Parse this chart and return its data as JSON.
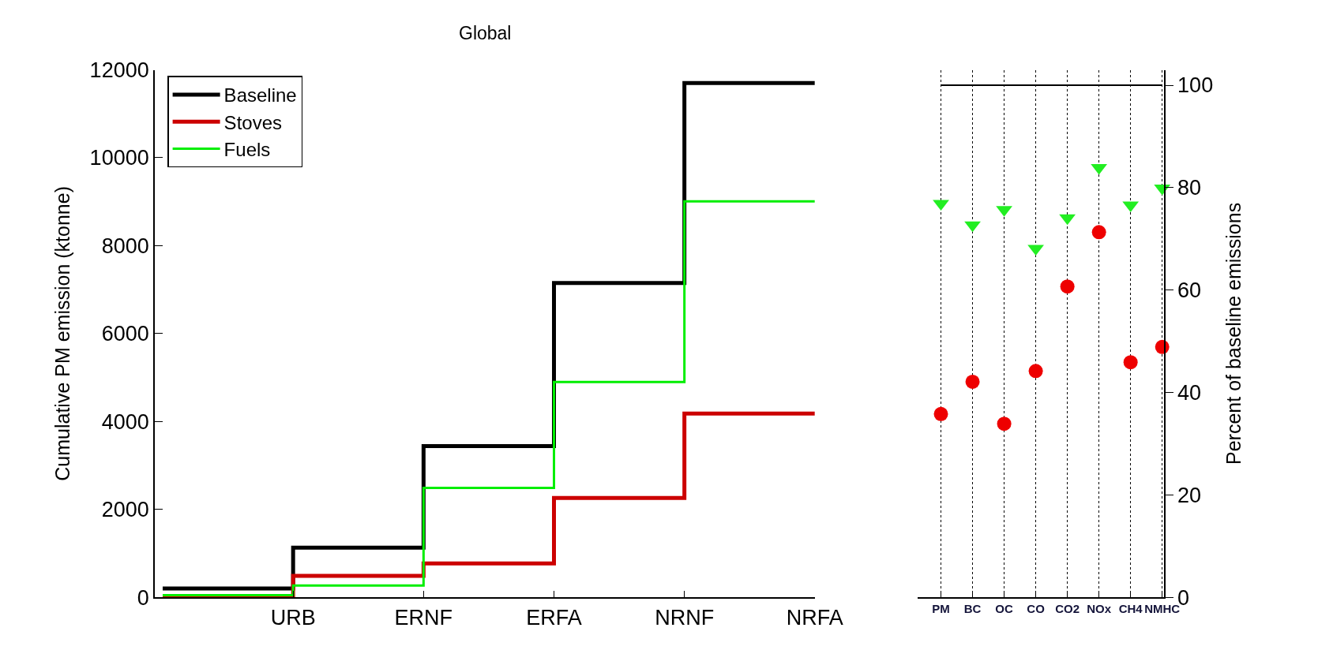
{
  "chart_data": [
    {
      "type": "step",
      "title": "Global",
      "ylabel": "Cumulative PM emission (ktonne)",
      "categories": [
        null,
        "URB",
        "ERNF",
        "ERFA",
        "NRNF",
        "NRFA"
      ],
      "ylim": [
        0,
        12000
      ],
      "yticks": [
        0,
        2000,
        4000,
        6000,
        8000,
        10000,
        12000
      ],
      "legend": "top left",
      "series": [
        {
          "name": "Baseline",
          "color": "#000000",
          "values": [
            200,
            1130,
            3440,
            7150,
            11700,
            11700
          ]
        },
        {
          "name": "Stoves",
          "color": "#cc0000",
          "values": [
            0,
            490,
            770,
            2260,
            4180,
            4180
          ]
        },
        {
          "name": "Fuels",
          "color": "#00ee00",
          "values": [
            50,
            270,
            2490,
            4900,
            9010,
            9010
          ]
        }
      ]
    },
    {
      "type": "scatter",
      "ylabel": "Percent of baseline emissions",
      "categories": [
        "PM",
        "BC",
        "OC",
        "CO",
        "CO2",
        "NOx",
        "CH4",
        "NMHC"
      ],
      "ylim": [
        0,
        103
      ],
      "yticks": [
        0,
        20,
        40,
        60,
        80,
        100
      ],
      "grid": "x",
      "series": [
        {
          "type": "line",
          "color": "#000000",
          "values": [
            100,
            100,
            100,
            100,
            100,
            100,
            100,
            100
          ]
        },
        {
          "color": "#ee0000",
          "marker": "circle",
          "values": [
            35.8,
            42.1,
            33.9,
            44.2,
            60.7,
            71.3,
            45.9,
            48.9
          ]
        },
        {
          "color": "#22ee22",
          "marker": "triangle",
          "values": [
            76.9,
            72.7,
            75.7,
            68.1,
            74.1,
            83.9,
            76.6,
            79.9
          ]
        }
      ]
    }
  ]
}
